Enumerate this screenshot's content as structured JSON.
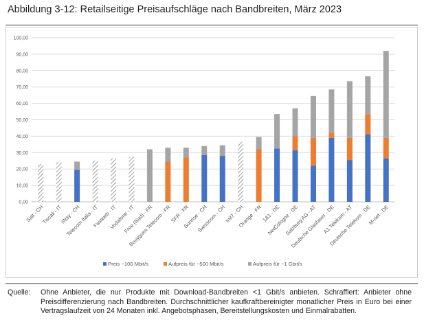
{
  "title": "Abbildung 3-12: Retailseitige Preisaufschläge nach Bandbreiten, März 2023",
  "source": {
    "label": "Quelle:",
    "text": "Ohne Anbieter, die nur Produkte mit Download-Bandbreiten <1 Gbit/s anbieten. Schraffiert: Anbieter ohne Preisdifferenzierung nach Bandbreiten. Durchschnittlicher kaufkraftbereinigter monatlicher Preis in Euro bei einer Vertragslaufzeit von 24 Monaten inkl. Angebotsphasen, Bereitstellungskosten und Einmalrabatten."
  },
  "colors": {
    "base": "#4472c4",
    "mid": "#ed7d31",
    "top": "#a5a5a5",
    "hatch": "#a5a5a5",
    "grid": "#d9d9d9",
    "axis_text": "#595959"
  },
  "chart_data": {
    "type": "bar",
    "stacked": true,
    "ylim": [
      0,
      100
    ],
    "yticks": [
      "0,00",
      "10,00",
      "20,00",
      "30,00",
      "40,00",
      "50,00",
      "60,00",
      "70,00",
      "80,00",
      "90,00",
      "100,00"
    ],
    "grid": true,
    "legend_position": "bottom",
    "categories": [
      "Salt - CH",
      "Tiscali - IT",
      "iWay - CH",
      "Telecom Italia - IT",
      "Fastweb - IT",
      "Vodafone - IT",
      "Free (Iliad) - FR",
      "Bouygues Telecom - FR",
      "SFR - FR",
      "Sunrise - CH",
      "Swisscom - CH",
      "Init7 - CH",
      "Orange - FR",
      "1&1 - DE",
      "NetCologne - DE",
      "Salzburg AG - AT",
      "Deutsche Glasfaser - DE",
      "A1 Telekom - AT",
      "Deutsche Telekom - DE",
      "M-net - DE"
    ],
    "series": [
      {
        "name": "Preis ~100 Mbit/s",
        "values": [
          null,
          null,
          19.5,
          null,
          null,
          null,
          null,
          null,
          null,
          28.5,
          28,
          null,
          null,
          32.5,
          31.5,
          22,
          39,
          25.5,
          41,
          26.5
        ]
      },
      {
        "name": "Aufpreis für ~500 Mbit/s",
        "values": [
          null,
          null,
          null,
          null,
          null,
          null,
          null,
          24.5,
          27,
          null,
          null,
          null,
          32,
          null,
          8.5,
          17,
          3,
          13.5,
          12.5,
          12.5
        ]
      },
      {
        "name": "Aufpreis für ~1 Gbit/s",
        "values": [
          null,
          null,
          5,
          null,
          null,
          null,
          32,
          8.5,
          6,
          5.5,
          6.5,
          null,
          7.5,
          21,
          17,
          25.5,
          26.5,
          34.5,
          23,
          53
        ]
      }
    ],
    "hatched_totals": [
      23,
      24,
      null,
      25,
      26.5,
      27.5,
      null,
      null,
      null,
      null,
      null,
      36.5,
      null,
      null,
      null,
      null,
      null,
      null,
      null,
      null
    ]
  }
}
